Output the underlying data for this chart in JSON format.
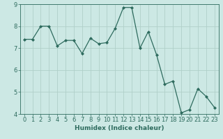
{
  "x": [
    0,
    1,
    2,
    3,
    4,
    5,
    6,
    7,
    8,
    9,
    10,
    11,
    12,
    13,
    14,
    15,
    16,
    17,
    18,
    19,
    20,
    21,
    22,
    23
  ],
  "y": [
    7.4,
    7.4,
    8.0,
    8.0,
    7.1,
    7.35,
    7.35,
    6.75,
    7.45,
    7.2,
    7.25,
    7.9,
    8.85,
    8.85,
    7.0,
    7.75,
    6.7,
    5.35,
    5.5,
    4.05,
    4.2,
    5.15,
    4.8,
    4.3
  ],
  "line_color": "#2e6b5e",
  "marker": "D",
  "marker_size": 2.0,
  "line_width": 0.9,
  "bg_color": "#cce8e4",
  "grid_color": "#b0cfc9",
  "xlabel": "Humidex (Indice chaleur)",
  "xlabel_fontsize": 6.5,
  "tick_label_fontsize": 6.0,
  "ylim": [
    4,
    9
  ],
  "xlim": [
    -0.5,
    23.5
  ],
  "yticks": [
    4,
    5,
    6,
    7,
    8,
    9
  ],
  "xticks": [
    0,
    1,
    2,
    3,
    4,
    5,
    6,
    7,
    8,
    9,
    10,
    11,
    12,
    13,
    14,
    15,
    16,
    17,
    18,
    19,
    20,
    21,
    22,
    23
  ]
}
